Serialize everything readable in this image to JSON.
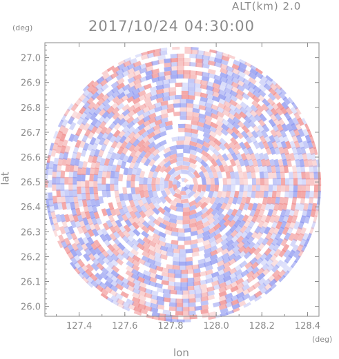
{
  "header": {
    "altitude_label": "ALT(km) 2.0",
    "timestamp": "2017/10/24 04:30:00"
  },
  "axes": {
    "x": {
      "label": "lon",
      "unit": "(deg)",
      "ticks": [
        127.4,
        127.6,
        127.8,
        128.0,
        128.2,
        128.4
      ],
      "tick_labels": [
        "127.4",
        "127.6",
        "127.8",
        "128.0",
        "128.2",
        "128.4"
      ],
      "range": [
        127.25,
        128.45
      ]
    },
    "y": {
      "label": "lat",
      "unit": "(deg)",
      "ticks": [
        26.0,
        26.1,
        26.2,
        26.3,
        26.4,
        26.5,
        26.6,
        26.7,
        26.8,
        26.9,
        27.0
      ],
      "tick_labels": [
        "26.0",
        "26.1",
        "26.2",
        "26.3",
        "26.4",
        "26.5",
        "26.6",
        "26.7",
        "26.8",
        "26.9",
        "27.0"
      ],
      "range": [
        25.96,
        27.06
      ]
    }
  },
  "radar": {
    "center_lon": 127.855,
    "center_lat": 26.49,
    "field": "Doppler velocity (red/blue)",
    "colors": {
      "positive": "#f08c8c",
      "negative": "#8c96f0",
      "neutral": "#ffffff",
      "axis": "#8a8a8a"
    }
  }
}
